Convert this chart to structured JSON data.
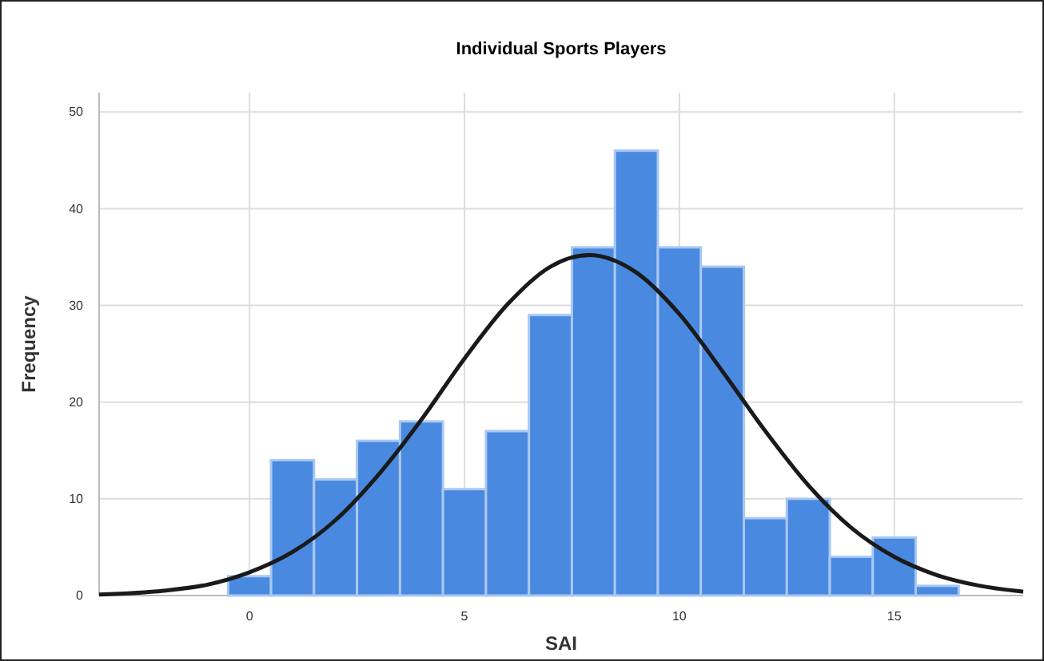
{
  "chart_data": {
    "type": "histogram",
    "title": "Individual Sports Players",
    "xlabel": "SAI",
    "ylabel": "Frequency",
    "bins": [
      -0.5,
      0.5,
      1.5,
      2.5,
      3.5,
      4.5,
      5.5,
      6.5,
      7.5,
      8.5,
      9.5,
      10.5,
      11.5,
      12.5,
      13.5,
      14.5,
      15.5,
      16.5
    ],
    "series": [
      {
        "color": "#4a89e0",
        "values": [
          2,
          14,
          12,
          16,
          18,
          11,
          17,
          29,
          36,
          46,
          36,
          34,
          8,
          10,
          4,
          6,
          1
        ]
      },
      {
        "type": "line",
        "color": "#1a1a1a",
        "x": [
          -3.5,
          -2,
          -1,
          0,
          1,
          2,
          3,
          4,
          5,
          6,
          7,
          7.9,
          9,
          10,
          11,
          12,
          13,
          14,
          15,
          16,
          17,
          18
        ],
        "values": [
          0.1,
          0.5,
          1.1,
          2.4,
          4.5,
          7.8,
          12.5,
          18.2,
          24.5,
          30.1,
          34,
          35.2,
          33.4,
          29.1,
          23.2,
          17,
          11.4,
          7,
          4,
          2.1,
          1,
          0.4
        ]
      }
    ],
    "xlim": [
      -3.5,
      18
    ],
    "xticks": [
      0,
      5,
      10,
      15
    ],
    "ylim": [
      0,
      52
    ],
    "yticks": [
      0,
      10,
      20,
      30,
      40,
      50
    ],
    "grid": true
  }
}
